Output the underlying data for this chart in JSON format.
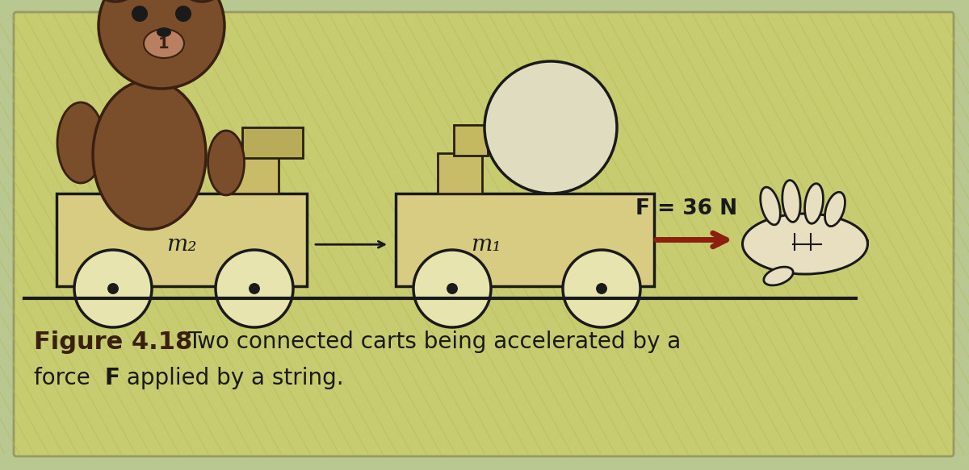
{
  "bg_outer_color": "#b8c890",
  "bg_main_color": "#c8cc70",
  "stripe_color": "#bfc460",
  "cart_fill": "#d8cc82",
  "cart_edge": "#1a1a1a",
  "wheel_fill": "#e8e4b0",
  "wheel_edge": "#1a1a1a",
  "bear_brown": "#7a4e2a",
  "bear_dark": "#3a2010",
  "bear_light": "#c49060",
  "ball_fill": "#e0dcc0",
  "ball_edge": "#1a1a1a",
  "box_fill": "#c8bc68",
  "box_edge": "#2a2010",
  "arrow_color": "#8b2010",
  "hand_fill": "#d0c0a0",
  "hand_edge": "#1a1a1a",
  "ground_color": "#1a1a1a",
  "text_color": "#1a1a1a",
  "caption_bold_color": "#3a2010",
  "force_label": "F = 36 N",
  "m1_label": "m₁",
  "m2_label": "m₂",
  "caption_bold": "Figure 4.18",
  "caption_rest": "  Two connected carts being accelerated by a\nforce ",
  "caption_F": "F",
  "caption_end": " applied by a string."
}
